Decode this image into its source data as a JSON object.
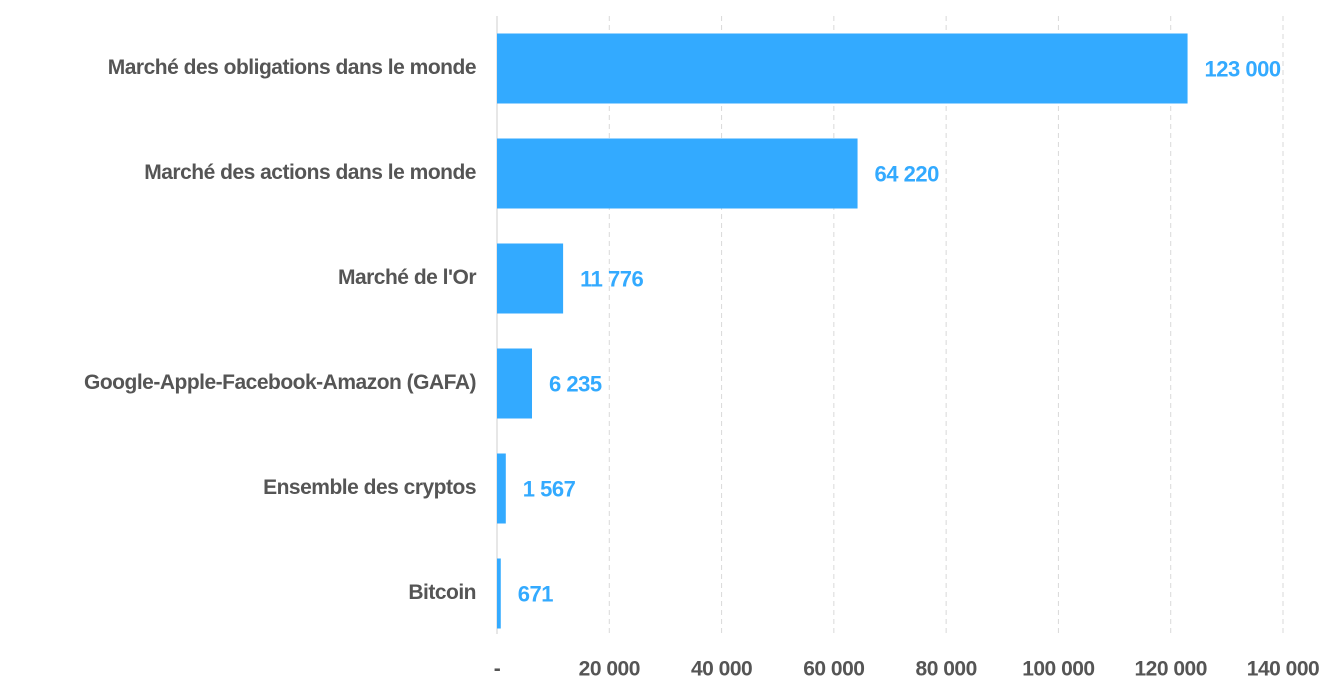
{
  "chart_data": {
    "type": "bar",
    "orientation": "horizontal",
    "categories": [
      "Marché des obligations dans le monde",
      "Marché des actions dans le monde",
      "Marché de l'Or",
      "Google-Apple-Facebook-Amazon (GAFA)",
      "Ensemble des cryptos",
      "Bitcoin"
    ],
    "values": [
      123000,
      64220,
      11776,
      6235,
      1567,
      671
    ],
    "value_labels": [
      "123 000",
      "64 220",
      "11 776",
      "6 235",
      "1 567",
      "671"
    ],
    "color": "#33aaff",
    "xlim": [
      0,
      140000
    ],
    "xticks": [
      {
        "value": 0,
        "label": "-"
      },
      {
        "value": 20000,
        "label": "20 000"
      },
      {
        "value": 40000,
        "label": "40 000"
      },
      {
        "value": 60000,
        "label": "60 000"
      },
      {
        "value": 80000,
        "label": "80 000"
      },
      {
        "value": 100000,
        "label": "100 000"
      },
      {
        "value": 120000,
        "label": "120 000"
      },
      {
        "value": 140000,
        "label": "140 000"
      }
    ],
    "grid": true
  }
}
